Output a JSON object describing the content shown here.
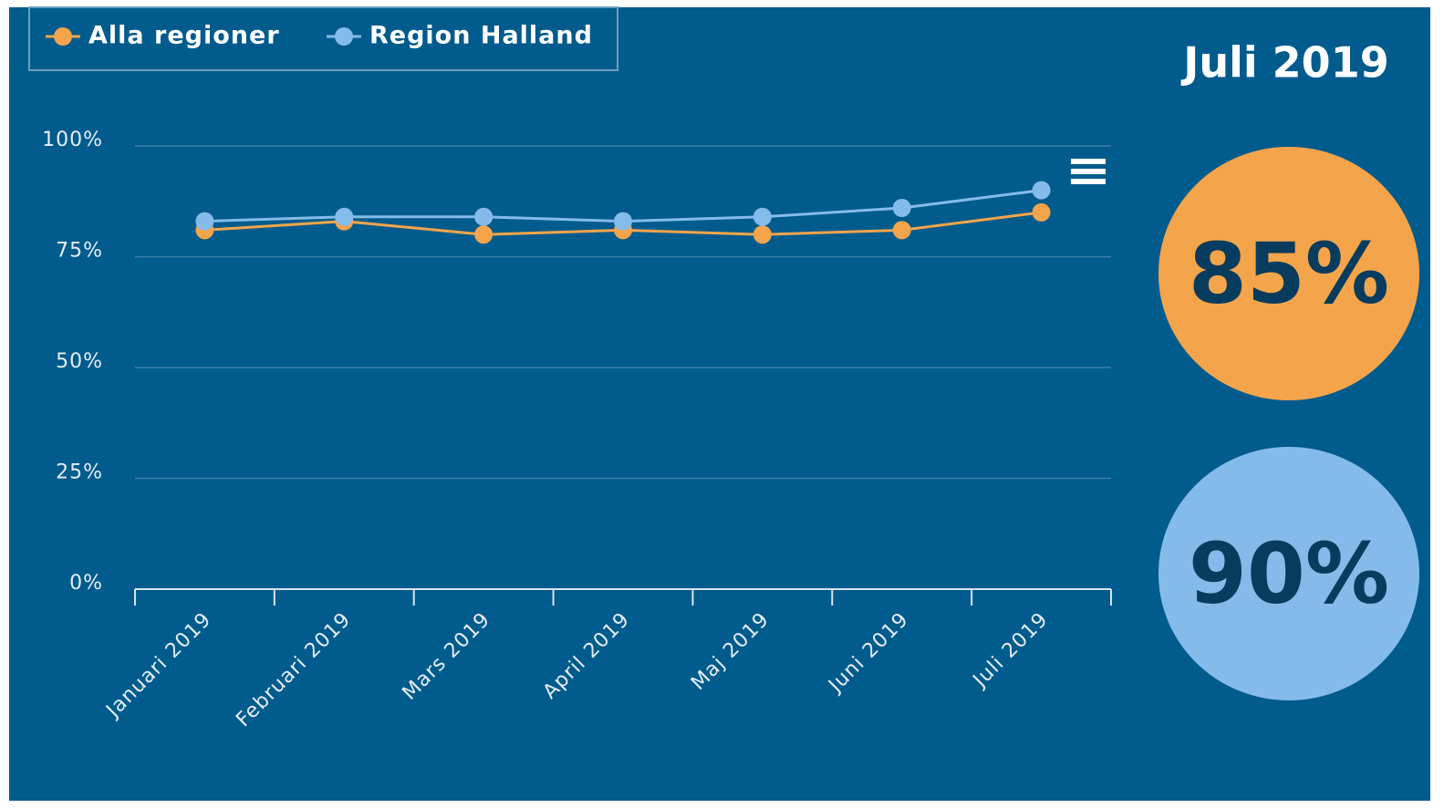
{
  "chart_data": {
    "type": "line",
    "categories": [
      "Januari 2019",
      "Februari 2019",
      "Mars 2019",
      "April 2019",
      "Maj 2019",
      "Juni 2019",
      "Juli 2019"
    ],
    "series": [
      {
        "name": "Alla regioner",
        "color": "#f4a44a",
        "values": [
          81,
          83,
          80,
          81,
          80,
          81,
          85
        ]
      },
      {
        "name": "Region Halland",
        "color": "#85bbea",
        "values": [
          83,
          84,
          84,
          83,
          84,
          86,
          90
        ]
      }
    ],
    "ylim": [
      0,
      100
    ],
    "yticks": [
      {
        "value": 0,
        "label": "0%"
      },
      {
        "value": 25,
        "label": "25%"
      },
      {
        "value": 50,
        "label": "50%"
      },
      {
        "value": 75,
        "label": "75%"
      },
      {
        "value": 100,
        "label": "100%"
      }
    ],
    "grid": true,
    "legend": "top-left"
  },
  "summary": {
    "title": "Juli 2019",
    "values": [
      "85%",
      "90%"
    ]
  }
}
